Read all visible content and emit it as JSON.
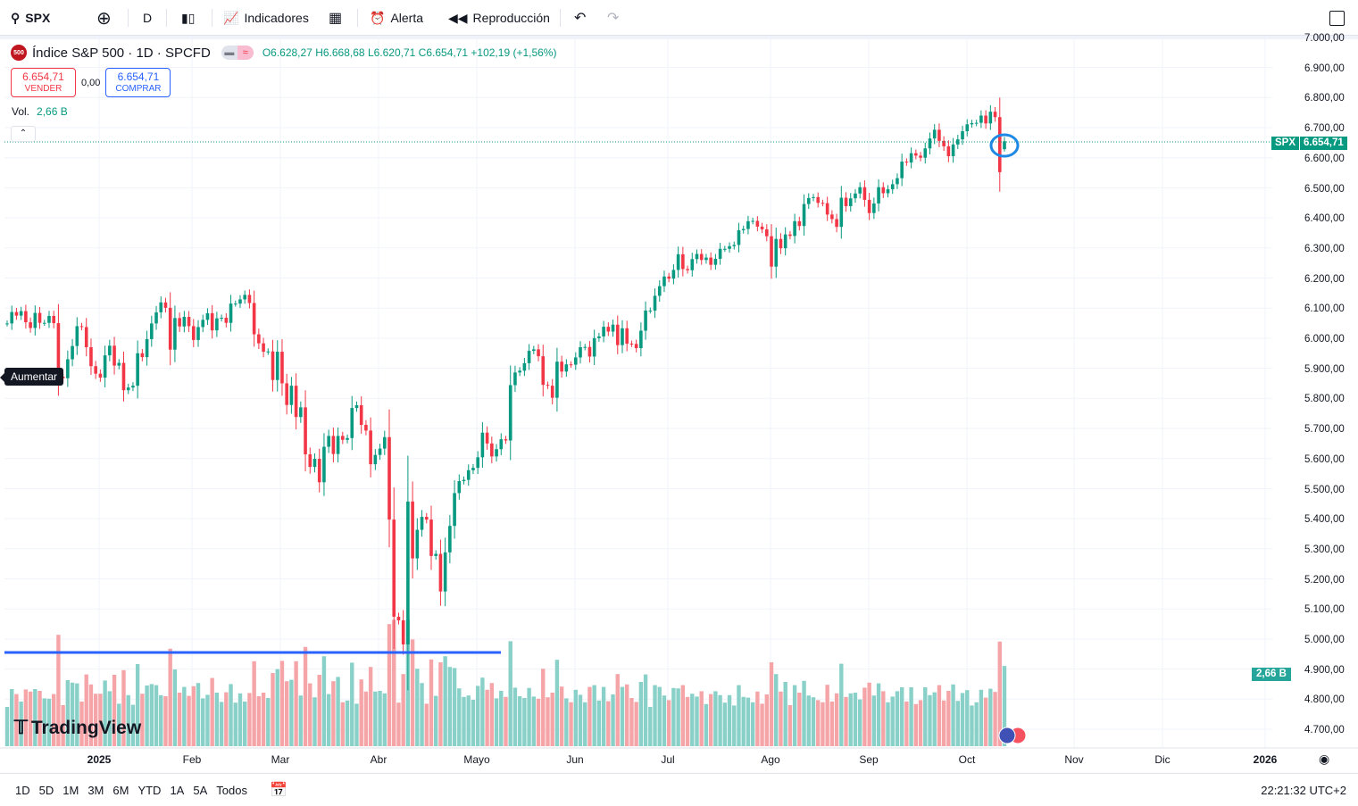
{
  "toolbar": {
    "symbol": "SPX",
    "interval": "D",
    "indicators": "Indicadores",
    "alert": "Alerta",
    "replay": "Reproducción"
  },
  "legend": {
    "title": "Índice S&P 500 · 1D · SPCFD",
    "logo_text": "500",
    "open": "O6.628,27",
    "high": "H6.668,68",
    "low": "L6.620,71",
    "close": "C6.654,71",
    "change": "+102,19 (+1,56%)"
  },
  "trade": {
    "sell_price": "6.654,71",
    "sell_label": "VENDER",
    "spread": "0,00",
    "buy_price": "6.654,71",
    "buy_label": "COMPRAR"
  },
  "volume": {
    "label": "Vol.",
    "value": "2,66 B"
  },
  "tooltip": "Aumentar",
  "branding": "TradingView",
  "price_axis": {
    "labels": [
      "7.000,00",
      "6.900,00",
      "6.800,00",
      "6.700,00",
      "6.600,00",
      "6.500,00",
      "6.400,00",
      "6.300,00",
      "6.200,00",
      "6.100,00",
      "6.000,00",
      "5.900,00",
      "5.800,00",
      "5.700,00",
      "5.600,00",
      "5.500,00",
      "5.400,00",
      "5.300,00",
      "5.200,00",
      "5.100,00",
      "5.000,00",
      "4.900,00",
      "4.800,00",
      "4.700,00"
    ],
    "symbol_tag": "SPX",
    "last_price": "6.654,71",
    "volume_tag": "2,66 B"
  },
  "time_axis": {
    "labels": [
      "2025",
      "Feb",
      "Mar",
      "Abr",
      "Mayo",
      "Jun",
      "Jul",
      "Ago",
      "Sep",
      "Oct",
      "Nov",
      "Dic",
      "2026"
    ]
  },
  "bottom": {
    "ranges": [
      "1D",
      "5D",
      "1M",
      "3M",
      "6M",
      "YTD",
      "1A",
      "5A",
      "Todos"
    ],
    "clock": "22:21:32 UTC+2"
  },
  "colors": {
    "up": "#089981",
    "down": "#f23645",
    "drawing": "#2962ff",
    "ellipse": "#1e88e5"
  },
  "chart_data": {
    "type": "candlestick",
    "ylim": [
      4700,
      7000
    ],
    "closes": [
      6049,
      6087,
      6075,
      6090,
      6053,
      6034,
      6084,
      6051,
      6051,
      6074,
      6050,
      5872,
      5867,
      5930,
      5974,
      6040,
      6037,
      5970,
      5907,
      5882,
      5869,
      5943,
      5975,
      5909,
      5918,
      5827,
      5836,
      5842,
      5950,
      5937,
      5997,
      6049,
      6086,
      6119,
      6101,
      5962,
      6067,
      6039,
      6071,
      6040,
      5994,
      6037,
      6061,
      6083,
      6026,
      6066,
      6068,
      6051,
      6115,
      6115,
      6129,
      6144,
      6117,
      6013,
      5983,
      5955,
      5956,
      5861,
      5955,
      5850,
      5778,
      5842,
      5738,
      5770,
      5614,
      5572,
      5599,
      5521,
      5639,
      5675,
      5615,
      5675,
      5662,
      5668,
      5768,
      5777,
      5712,
      5693,
      5581,
      5612,
      5633,
      5671,
      5397,
      5074,
      5062,
      4982,
      5457,
      5268,
      5363,
      5406,
      5397,
      5276,
      5283,
      5158,
      5288,
      5376,
      5485,
      5525,
      5529,
      5561,
      5569,
      5604,
      5686,
      5650,
      5607,
      5631,
      5664,
      5660,
      5844,
      5886,
      5892,
      5917,
      5958,
      5963,
      5940,
      5845,
      5842,
      5802,
      5922,
      5889,
      5913,
      5912,
      5936,
      5970,
      5971,
      5939,
      6000,
      6006,
      6038,
      6022,
      6045,
      5977,
      6033,
      5982,
      5981,
      5967,
      6025,
      6092,
      6092,
      6141,
      6173,
      6205,
      6198,
      6227,
      6279,
      6230,
      6226,
      6263,
      6280,
      6260,
      6268,
      6244,
      6264,
      6297,
      6297,
      6306,
      6310,
      6359,
      6363,
      6389,
      6390,
      6371,
      6362,
      6339,
      6238,
      6330,
      6299,
      6345,
      6340,
      6389,
      6373,
      6446,
      6466,
      6469,
      6450,
      6449,
      6411,
      6396,
      6370,
      6467,
      6439,
      6465,
      6481,
      6502,
      6460,
      6416,
      6448,
      6502,
      6482,
      6495,
      6512,
      6532,
      6587,
      6584,
      6615,
      6607,
      6600,
      6631,
      6664,
      6693,
      6656,
      6638,
      6605,
      6644,
      6661,
      6688,
      6711,
      6715,
      6716,
      6740,
      6714,
      6753,
      6735,
      6552,
      6654.71
    ],
    "last_candle": {
      "open": 6628.27,
      "high": 6668.68,
      "low": 6620.71,
      "close": 6654.71,
      "change": 102.19,
      "change_pct": 1.56
    },
    "horizontal_line_level": 4955
  }
}
